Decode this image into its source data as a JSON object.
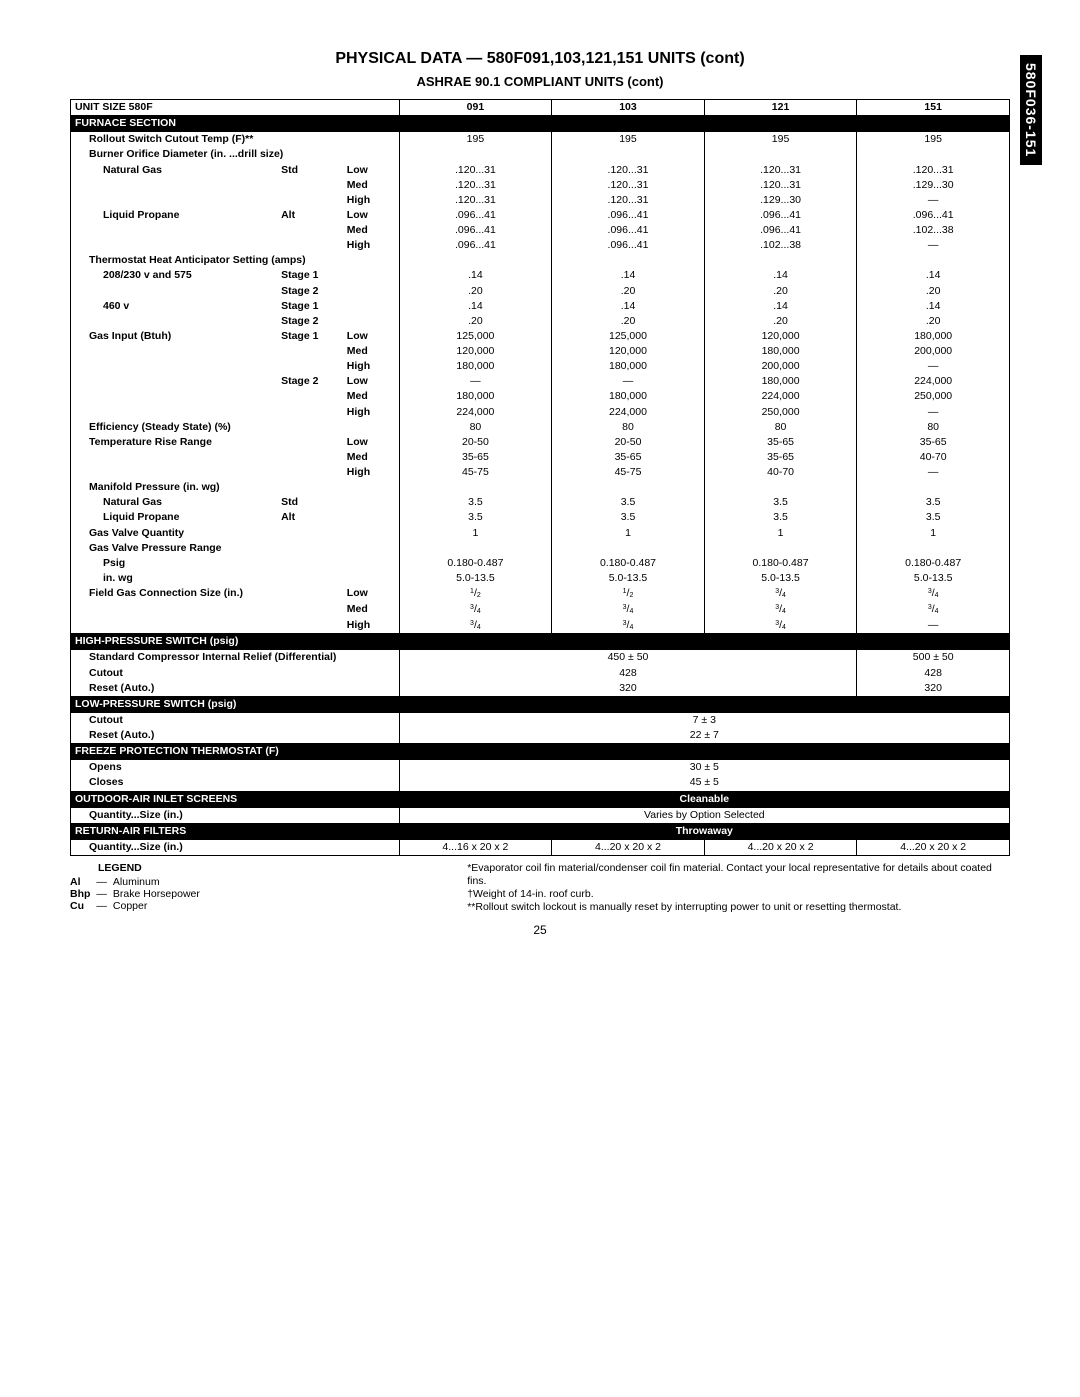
{
  "sideTab": "580F036-151",
  "title": "PHYSICAL DATA — 580F091,103,121,151 UNITS (cont)",
  "subtitle": "ASHRAE 90.1 COMPLIANT UNITS (cont)",
  "pageNum": "25",
  "columns": {
    "unitSizeHeader": "UNIT SIZE 580F",
    "c1": "091",
    "c2": "103",
    "c3": "121",
    "c4": "151"
  },
  "sections": {
    "furnace": "FURNACE SECTION",
    "hps": "HIGH-PRESSURE SWITCH (psig)",
    "lps": "LOW-PRESSURE SWITCH (psig)",
    "freeze": "FREEZE PROTECTION THERMOSTAT (F)",
    "outdoor": "OUTDOOR-AIR INLET SCREENS",
    "return": "RETURN-AIR FILTERS"
  },
  "blackVals": {
    "outdoor": "Cleanable",
    "return": "Throwaway"
  },
  "labels": {
    "rollout": "Rollout Switch Cutout Temp (F)**",
    "burner": "Burner Orifice Diameter (in. ...drill size)",
    "natgas": "Natural Gas",
    "lp": "Liquid Propane",
    "std": "Std",
    "alt": "Alt",
    "low": "Low",
    "med": "Med",
    "high": "High",
    "tha": "Thermostat Heat Anticipator Setting (amps)",
    "v208": "208/230 v and 575",
    "v460": "460 v",
    "s1": "Stage 1",
    "s2": "Stage 2",
    "gasInput": "Gas Input (Btuh)",
    "effSteady": "Efficiency (Steady State) (%)",
    "tempRise": "Temperature Rise Range",
    "manifold": "Manifold Pressure (in. wg)",
    "gvq": "Gas Valve Quantity",
    "gvpr": "Gas Valve Pressure Range",
    "psig": "Psig",
    "inwg": "in. wg",
    "fgc": "Field Gas Connection Size (in.)",
    "stdComp": "Standard Compressor Internal Relief (Differential)",
    "cutout": "Cutout",
    "reset": "Reset (Auto.)",
    "opens": "Opens",
    "closes": "Closes",
    "qtySize": "Quantity...Size (in.)"
  },
  "vals": {
    "rollout": {
      "c1": "195",
      "c2": "195",
      "c3": "195",
      "c4": "195"
    },
    "natgas": {
      "low": {
        "c1": ".120...31",
        "c2": ".120...31",
        "c3": ".120...31",
        "c4": ".120...31"
      },
      "med": {
        "c1": ".120...31",
        "c2": ".120...31",
        "c3": ".120...31",
        "c4": ".129...30"
      },
      "high": {
        "c1": ".120...31",
        "c2": ".120...31",
        "c3": ".129...30",
        "c4": "—"
      }
    },
    "lp": {
      "low": {
        "c1": ".096...41",
        "c2": ".096...41",
        "c3": ".096...41",
        "c4": ".096...41"
      },
      "med": {
        "c1": ".096...41",
        "c2": ".096...41",
        "c3": ".096...41",
        "c4": ".102...38"
      },
      "high": {
        "c1": ".096...41",
        "c2": ".096...41",
        "c3": ".102...38",
        "c4": "—"
      }
    },
    "tha208": {
      "s1": {
        "all": ".14"
      },
      "s2": {
        "all": ".20"
      }
    },
    "tha460": {
      "s1": {
        "all": ".14"
      },
      "s2": {
        "all": ".20"
      }
    },
    "gasInput": {
      "s1": {
        "low": {
          "c1": "125,000",
          "c2": "125,000",
          "c3": "120,000",
          "c4": "180,000"
        },
        "med": {
          "c1": "120,000",
          "c2": "120,000",
          "c3": "180,000",
          "c4": "200,000"
        },
        "high": {
          "c1": "180,000",
          "c2": "180,000",
          "c3": "200,000",
          "c4": "—"
        }
      },
      "s2": {
        "low": {
          "c1": "—",
          "c2": "—",
          "c3": "180,000",
          "c4": "224,000"
        },
        "med": {
          "c1": "180,000",
          "c2": "180,000",
          "c3": "224,000",
          "c4": "250,000"
        },
        "high": {
          "c1": "224,000",
          "c2": "224,000",
          "c3": "250,000",
          "c4": "—"
        }
      }
    },
    "eff": {
      "c1": "80",
      "c2": "80",
      "c3": "80",
      "c4": "80"
    },
    "tempRise": {
      "low": {
        "c1": "20-50",
        "c2": "20-50",
        "c3": "35-65",
        "c4": "35-65"
      },
      "med": {
        "c1": "35-65",
        "c2": "35-65",
        "c3": "35-65",
        "c4": "40-70"
      },
      "high": {
        "c1": "45-75",
        "c2": "45-75",
        "c3": "40-70",
        "c4": "—"
      }
    },
    "manNG": {
      "c1": "3.5",
      "c2": "3.5",
      "c3": "3.5",
      "c4": "3.5"
    },
    "manLP": {
      "c1": "3.5",
      "c2": "3.5",
      "c3": "3.5",
      "c4": "3.5"
    },
    "gvq": {
      "c1": "1",
      "c2": "1",
      "c3": "1",
      "c4": "1"
    },
    "psig": {
      "c1": "0.180-0.487",
      "c2": "0.180-0.487",
      "c3": "0.180-0.487",
      "c4": "0.180-0.487"
    },
    "inwg": {
      "c1": "5.0-13.5",
      "c2": "5.0-13.5",
      "c3": "5.0-13.5",
      "c4": "5.0-13.5"
    },
    "fgc": {
      "low": {
        "c1": "1/2",
        "c2": "1/2",
        "c3": "3/4",
        "c4": "3/4"
      },
      "med": {
        "c1": "3/4",
        "c2": "3/4",
        "c3": "3/4",
        "c4": "3/4"
      },
      "high": {
        "c1": "3/4",
        "c2": "3/4",
        "c3": "3/4",
        "c4": "—"
      }
    },
    "hps": {
      "std": {
        "span123": "450 ± 50",
        "c4": "500 ± 50"
      },
      "cutout": {
        "span123": "428",
        "c4": "428"
      },
      "reset": {
        "span123": "320",
        "c4": "320"
      }
    },
    "lpsCutout": "7 ± 3",
    "lpsReset": "22 ± 7",
    "opens": "30 ± 5",
    "closes": "45 ± 5",
    "outdoorQty": "Varies by Option Selected",
    "returnQty": {
      "c1": "4...16 x 20 x 2",
      "c2": "4...20 x 20 x 2",
      "c3": "4...20 x 20 x 2",
      "c4": "4...20 x 20 x 2"
    }
  },
  "legend": {
    "hd": "LEGEND",
    "al": "Al",
    "alv": "Aluminum",
    "bhp": "Bhp",
    "bhpv": "Brake Horsepower",
    "cu": "Cu",
    "cuv": "Copper",
    "dash": "—",
    "note1": "*Evaporator coil fin material/condenser coil fin material. Contact your local representative for details about coated fins.",
    "note2": "†Weight of 14-in. roof curb.",
    "note3": "**Rollout switch lockout is manually reset by interrupting power to unit or resetting thermostat."
  }
}
